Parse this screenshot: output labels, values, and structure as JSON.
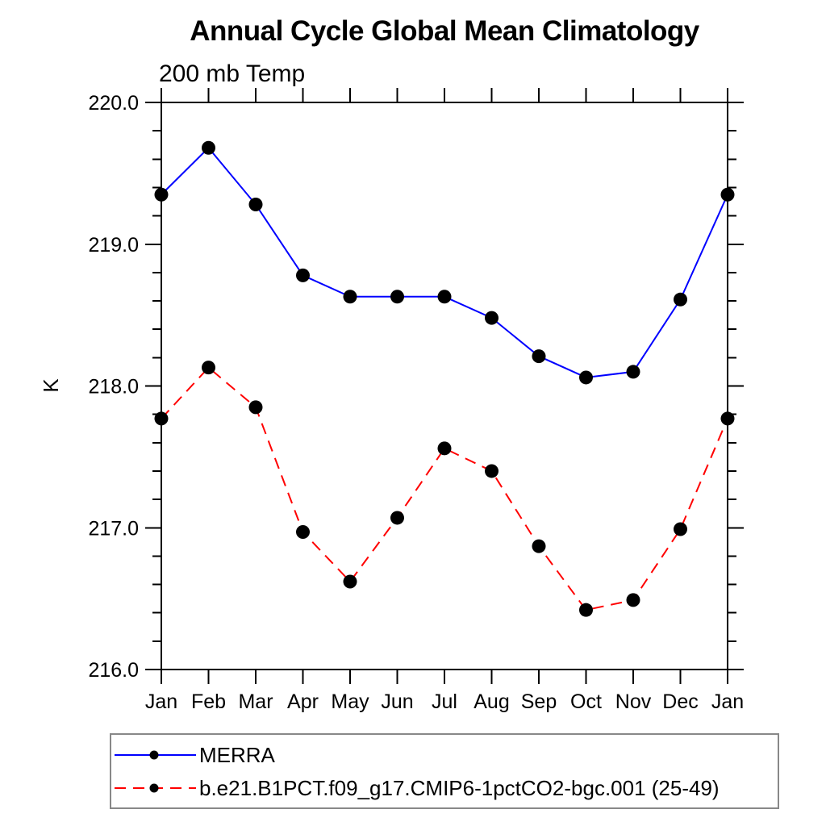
{
  "page": {
    "background_color": "#ffffff",
    "text_color": "#000000",
    "legend_border_color": "#888888"
  },
  "chart_data": {
    "type": "line",
    "title": "Annual Cycle Global Mean Climatology",
    "subtitle": "200 mb Temp",
    "xlabel": "",
    "ylabel": "K",
    "categories": [
      "Jan",
      "Feb",
      "Mar",
      "Apr",
      "May",
      "Jun",
      "Jul",
      "Aug",
      "Sep",
      "Oct",
      "Nov",
      "Dec",
      "Jan"
    ],
    "ylim": [
      216.0,
      220.0
    ],
    "y_major_tick_step": 1.0,
    "y_minor_tick_step": 0.2,
    "y_major_tick_labels": [
      "216.0",
      "217.0",
      "218.0",
      "219.0",
      "220.0"
    ],
    "grid": false,
    "legend_position": "bottom-left-box",
    "marker": {
      "shape": "circle",
      "color": "#000000"
    },
    "series": [
      {
        "name": "MERRA",
        "color": "#0000ff",
        "line_style": "solid",
        "values": [
          219.35,
          219.68,
          219.28,
          218.78,
          218.63,
          218.63,
          218.63,
          218.48,
          218.21,
          218.06,
          218.1,
          218.61,
          219.35
        ]
      },
      {
        "name": "b.e21.B1PCT.f09_g17.CMIP6-1pctCO2-bgc.001 (25-49)",
        "color": "#ff0000",
        "line_style": "dashed",
        "values": [
          217.77,
          218.13,
          217.85,
          216.97,
          216.62,
          217.07,
          217.56,
          217.4,
          216.87,
          216.42,
          216.49,
          216.99,
          217.77
        ]
      }
    ]
  }
}
